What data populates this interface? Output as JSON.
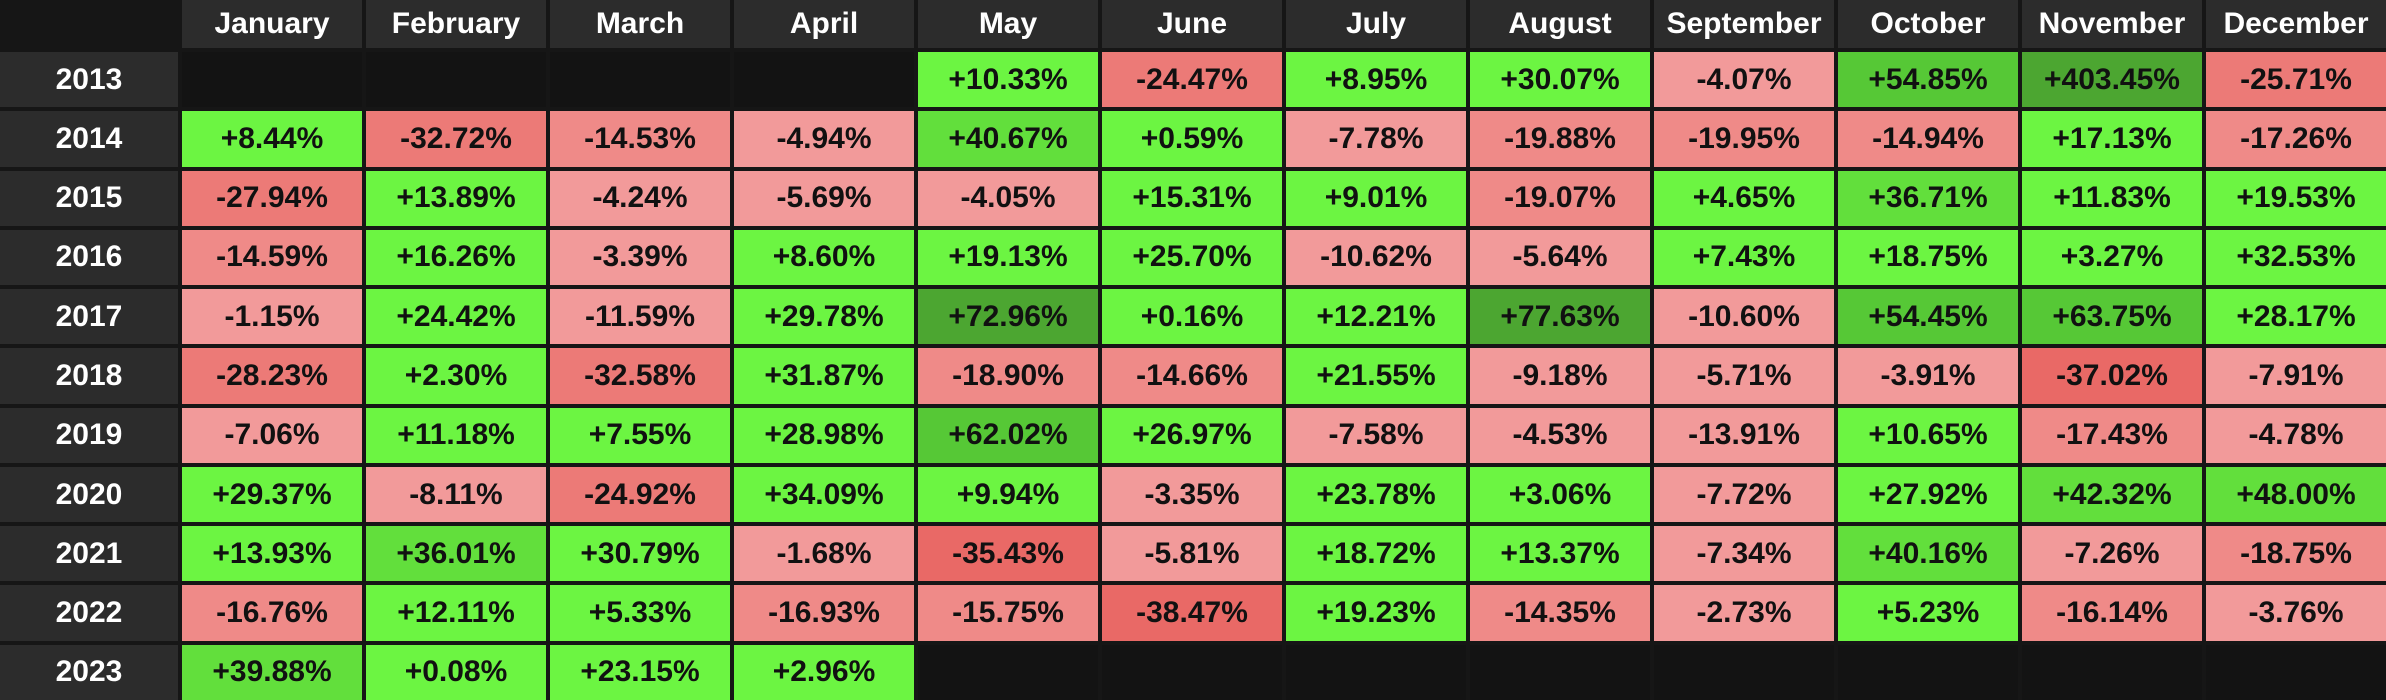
{
  "chart_data": {
    "type": "heatmap",
    "title": "",
    "columns": [
      "January",
      "February",
      "March",
      "April",
      "May",
      "June",
      "July",
      "August",
      "September",
      "October",
      "November",
      "December"
    ],
    "rows": [
      "2013",
      "2014",
      "2015",
      "2016",
      "2017",
      "2018",
      "2019",
      "2020",
      "2021",
      "2022",
      "2023"
    ],
    "values": [
      [
        null,
        null,
        null,
        null,
        10.33,
        -24.47,
        8.95,
        30.07,
        -4.07,
        54.85,
        403.45,
        -25.71
      ],
      [
        8.44,
        -32.72,
        -14.53,
        -4.94,
        40.67,
        0.59,
        -7.78,
        -19.88,
        -19.95,
        -14.94,
        17.13,
        -17.26
      ],
      [
        -27.94,
        13.89,
        -4.24,
        -5.69,
        -4.05,
        15.31,
        9.01,
        -19.07,
        4.65,
        36.71,
        11.83,
        19.53
      ],
      [
        -14.59,
        16.26,
        -3.39,
        8.6,
        19.13,
        25.7,
        -10.62,
        -5.64,
        7.43,
        18.75,
        3.27,
        32.53
      ],
      [
        -1.15,
        24.42,
        -11.59,
        29.78,
        72.96,
        0.16,
        12.21,
        77.63,
        -10.6,
        54.45,
        63.75,
        28.17
      ],
      [
        -28.23,
        2.3,
        -32.58,
        31.87,
        -18.9,
        -14.66,
        21.55,
        -9.18,
        -5.71,
        -3.91,
        -37.02,
        -7.91
      ],
      [
        -7.06,
        11.18,
        7.55,
        28.98,
        62.02,
        26.97,
        -7.58,
        -4.53,
        -13.91,
        10.65,
        -17.43,
        -4.78
      ],
      [
        29.37,
        -8.11,
        -24.92,
        34.09,
        9.94,
        -3.35,
        23.78,
        3.06,
        -7.72,
        27.92,
        42.32,
        48.0
      ],
      [
        13.93,
        36.01,
        30.79,
        -1.68,
        -35.43,
        -5.81,
        18.72,
        13.37,
        -7.34,
        40.16,
        -7.26,
        -18.75
      ],
      [
        -16.76,
        12.11,
        5.33,
        -16.93,
        -15.75,
        -38.47,
        19.23,
        -14.35,
        -2.73,
        5.23,
        -16.14,
        -3.76
      ],
      [
        39.88,
        0.08,
        23.15,
        2.96,
        null,
        null,
        null,
        null,
        null,
        null,
        null,
        null
      ]
    ],
    "labels": [
      [
        null,
        null,
        null,
        null,
        "+10.33%",
        "-24.47%",
        "+8.95%",
        "+30.07%",
        "-4.07%",
        "+54.85%",
        "+403.45%",
        "-25.71%"
      ],
      [
        "+8.44%",
        "-32.72%",
        "-14.53%",
        "-4.94%",
        "+40.67%",
        "+0.59%",
        "-7.78%",
        "-19.88%",
        "-19.95%",
        "-14.94%",
        "+17.13%",
        "-17.26%"
      ],
      [
        "-27.94%",
        "+13.89%",
        "-4.24%",
        "-5.69%",
        "-4.05%",
        "+15.31%",
        "+9.01%",
        "-19.07%",
        "+4.65%",
        "+36.71%",
        "+11.83%",
        "+19.53%"
      ],
      [
        "-14.59%",
        "+16.26%",
        "-3.39%",
        "+8.60%",
        "+19.13%",
        "+25.70%",
        "-10.62%",
        "-5.64%",
        "+7.43%",
        "+18.75%",
        "+3.27%",
        "+32.53%"
      ],
      [
        "-1.15%",
        "+24.42%",
        "-11.59%",
        "+29.78%",
        "+72.96%",
        "+0.16%",
        "+12.21%",
        "+77.63%",
        "-10.60%",
        "+54.45%",
        "+63.75%",
        "+28.17%"
      ],
      [
        "-28.23%",
        "+2.30%",
        "-32.58%",
        "+31.87%",
        "-18.90%",
        "-14.66%",
        "+21.55%",
        "-9.18%",
        "-5.71%",
        "-3.91%",
        "-37.02%",
        "-7.91%"
      ],
      [
        "-7.06%",
        "+11.18%",
        "+7.55%",
        "+28.98%",
        "+62.02%",
        "+26.97%",
        "-7.58%",
        "-4.53%",
        "-13.91%",
        "+10.65%",
        "-17.43%",
        "-4.78%"
      ],
      [
        "+29.37%",
        "-8.11%",
        "-24.92%",
        "+34.09%",
        "+9.94%",
        "-3.35%",
        "+23.78%",
        "+3.06%",
        "-7.72%",
        "+27.92%",
        "+42.32%",
        "+48.00%"
      ],
      [
        "+13.93%",
        "+36.01%",
        "+30.79%",
        "-1.68%",
        "-35.43%",
        "-5.81%",
        "+18.72%",
        "+13.37%",
        "-7.34%",
        "+40.16%",
        "-7.26%",
        "-18.75%"
      ],
      [
        "-16.76%",
        "+12.11%",
        "+5.33%",
        "-16.93%",
        "-15.75%",
        "-38.47%",
        "+19.23%",
        "-14.35%",
        "-2.73%",
        "+5.23%",
        "-16.14%",
        "-3.76%"
      ],
      [
        "+39.88%",
        "+0.08%",
        "+23.15%",
        "+2.96%",
        null,
        null,
        null,
        null,
        null,
        null,
        null,
        null
      ]
    ],
    "color_scale": {
      "positive": [
        "#6cf542",
        "#62df3c",
        "#56c836",
        "#4ca631"
      ],
      "negative": [
        "#f29a9a",
        "#ef8a88",
        "#ec7a77",
        "#e96966"
      ],
      "empty": "#131313"
    }
  }
}
